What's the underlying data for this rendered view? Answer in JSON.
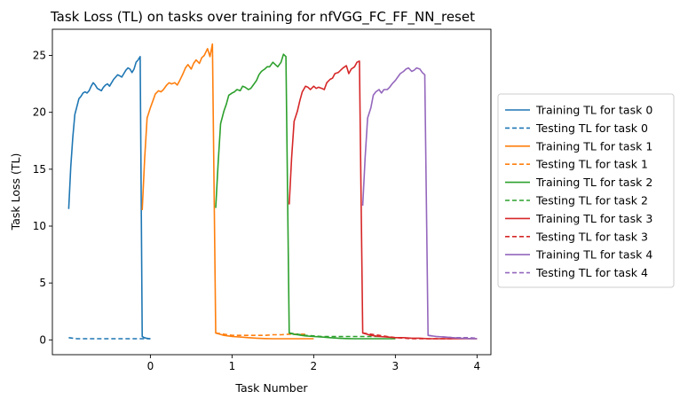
{
  "chart_data": {
    "type": "line",
    "title": "Task Loss (TL) on tasks over training for nfVGG_FC_FF_NN_reset",
    "xlabel": "Task Number",
    "ylabel": "Task Loss (TL)",
    "xlim": [
      -1.2,
      4.17
    ],
    "ylim": [
      -1.3,
      27.3
    ],
    "xticks": [
      0,
      1,
      2,
      3,
      4
    ],
    "yticks": [
      0,
      5,
      10,
      15,
      20,
      25
    ],
    "grid": false,
    "legend_position": "right-outside",
    "colors": {
      "task0": "#1f77b4",
      "task1": "#ff7f0e",
      "task2": "#2ca02c",
      "task3": "#d62728",
      "task4": "#9467bd"
    },
    "x": [
      -1.0,
      -0.9,
      -0.8,
      -0.7,
      -0.6,
      -0.5,
      -0.4,
      -0.3,
      -0.2,
      -0.1,
      0.0,
      0.1,
      0.2,
      0.3,
      0.4,
      0.5,
      0.6,
      0.7,
      0.8,
      0.9,
      1.0,
      1.1,
      1.2,
      1.3,
      1.4,
      1.5,
      1.6,
      1.7,
      1.8,
      1.9,
      2.0,
      2.1,
      2.2,
      2.3,
      2.4,
      2.5,
      2.6,
      2.7,
      2.8,
      2.9,
      3.0,
      3.1,
      3.2,
      3.3,
      3.4,
      3.5,
      3.6,
      3.7,
      3.8,
      3.9
    ],
    "series": [
      {
        "name": "Training TL for task 0",
        "task": "task0",
        "dash": false,
        "points": [
          [
            -1.0,
            11.5
          ],
          [
            -0.975,
            15.2
          ],
          [
            -0.95,
            17.8
          ],
          [
            -0.925,
            19.8
          ],
          [
            -0.9,
            20.5
          ],
          [
            -0.875,
            21.2
          ],
          [
            -0.85,
            21.4
          ],
          [
            -0.825,
            21.7
          ],
          [
            -0.8,
            21.8
          ],
          [
            -0.775,
            21.7
          ],
          [
            -0.75,
            21.9
          ],
          [
            -0.725,
            22.3
          ],
          [
            -0.7,
            22.6
          ],
          [
            -0.675,
            22.4
          ],
          [
            -0.65,
            22.1
          ],
          [
            -0.625,
            22.0
          ],
          [
            -0.6,
            21.9
          ],
          [
            -0.575,
            22.2
          ],
          [
            -0.55,
            22.4
          ],
          [
            -0.525,
            22.5
          ],
          [
            -0.5,
            22.3
          ],
          [
            -0.475,
            22.6
          ],
          [
            -0.45,
            22.9
          ],
          [
            -0.425,
            23.1
          ],
          [
            -0.4,
            23.3
          ],
          [
            -0.375,
            23.2
          ],
          [
            -0.35,
            23.1
          ],
          [
            -0.325,
            23.4
          ],
          [
            -0.3,
            23.7
          ],
          [
            -0.275,
            23.9
          ],
          [
            -0.25,
            23.8
          ],
          [
            -0.225,
            23.5
          ],
          [
            -0.2,
            23.8
          ],
          [
            -0.175,
            24.4
          ],
          [
            -0.15,
            24.6
          ],
          [
            -0.125,
            24.9
          ],
          [
            -0.1,
            0.3
          ],
          [
            -0.075,
            0.2
          ],
          [
            -0.05,
            0.15
          ],
          [
            -0.025,
            0.12
          ],
          [
            0.0,
            0.1
          ]
        ]
      },
      {
        "name": "Testing TL for task 0",
        "task": "task0",
        "dash": true,
        "points": [
          [
            -1.0,
            0.2
          ],
          [
            -0.95,
            0.15
          ],
          [
            -0.9,
            0.1
          ],
          [
            -0.8,
            0.1
          ],
          [
            -0.7,
            0.1
          ],
          [
            -0.6,
            0.1
          ],
          [
            -0.5,
            0.1
          ],
          [
            -0.4,
            0.1
          ],
          [
            -0.3,
            0.1
          ],
          [
            -0.2,
            0.1
          ],
          [
            -0.1,
            0.1
          ],
          [
            0.0,
            0.1
          ]
        ]
      },
      {
        "name": "Training TL for task 1",
        "task": "task1",
        "dash": false,
        "points": [
          [
            -0.1,
            11.4
          ],
          [
            -0.07,
            16.0
          ],
          [
            -0.04,
            19.5
          ],
          [
            0.0,
            20.4
          ],
          [
            0.03,
            21.0
          ],
          [
            0.06,
            21.6
          ],
          [
            0.1,
            21.9
          ],
          [
            0.13,
            21.8
          ],
          [
            0.16,
            22.0
          ],
          [
            0.2,
            22.4
          ],
          [
            0.23,
            22.6
          ],
          [
            0.26,
            22.5
          ],
          [
            0.3,
            22.6
          ],
          [
            0.33,
            22.4
          ],
          [
            0.36,
            22.8
          ],
          [
            0.4,
            23.4
          ],
          [
            0.43,
            23.9
          ],
          [
            0.46,
            24.2
          ],
          [
            0.5,
            23.8
          ],
          [
            0.53,
            24.3
          ],
          [
            0.56,
            24.6
          ],
          [
            0.6,
            24.3
          ],
          [
            0.63,
            24.8
          ],
          [
            0.66,
            25.0
          ],
          [
            0.7,
            25.6
          ],
          [
            0.73,
            24.9
          ],
          [
            0.76,
            26.0
          ],
          [
            0.8,
            0.6
          ],
          [
            0.85,
            0.5
          ],
          [
            0.9,
            0.4
          ],
          [
            0.95,
            0.35
          ],
          [
            1.0,
            0.3
          ],
          [
            1.1,
            0.25
          ],
          [
            1.2,
            0.2
          ],
          [
            1.3,
            0.15
          ],
          [
            1.4,
            0.12
          ],
          [
            1.5,
            0.1
          ],
          [
            1.6,
            0.1
          ],
          [
            1.7,
            0.1
          ],
          [
            1.8,
            0.1
          ],
          [
            1.9,
            0.1
          ],
          [
            2.0,
            0.1
          ]
        ]
      },
      {
        "name": "Testing TL for task 1",
        "task": "task1",
        "dash": true,
        "points": [
          [
            0.8,
            0.6
          ],
          [
            0.9,
            0.5
          ],
          [
            1.0,
            0.4
          ],
          [
            1.1,
            0.4
          ],
          [
            1.2,
            0.4
          ],
          [
            1.3,
            0.4
          ],
          [
            1.4,
            0.4
          ],
          [
            1.5,
            0.45
          ],
          [
            1.6,
            0.45
          ],
          [
            1.7,
            0.5
          ],
          [
            1.8,
            0.5
          ],
          [
            1.9,
            0.5
          ]
        ]
      },
      {
        "name": "Training TL for task 2",
        "task": "task2",
        "dash": false,
        "points": [
          [
            0.8,
            11.6
          ],
          [
            0.83,
            15.5
          ],
          [
            0.86,
            19.0
          ],
          [
            0.9,
            20.1
          ],
          [
            0.93,
            20.7
          ],
          [
            0.96,
            21.5
          ],
          [
            1.0,
            21.7
          ],
          [
            1.03,
            21.8
          ],
          [
            1.06,
            22.0
          ],
          [
            1.1,
            21.9
          ],
          [
            1.13,
            22.3
          ],
          [
            1.16,
            22.2
          ],
          [
            1.2,
            22.0
          ],
          [
            1.23,
            22.1
          ],
          [
            1.26,
            22.4
          ],
          [
            1.3,
            22.8
          ],
          [
            1.33,
            23.3
          ],
          [
            1.36,
            23.6
          ],
          [
            1.4,
            23.8
          ],
          [
            1.43,
            24.0
          ],
          [
            1.46,
            24.0
          ],
          [
            1.5,
            24.4
          ],
          [
            1.53,
            24.2
          ],
          [
            1.56,
            24.0
          ],
          [
            1.6,
            24.4
          ],
          [
            1.63,
            25.1
          ],
          [
            1.66,
            24.9
          ],
          [
            1.7,
            0.6
          ],
          [
            1.75,
            0.5
          ],
          [
            1.8,
            0.45
          ],
          [
            1.85,
            0.4
          ],
          [
            1.9,
            0.35
          ],
          [
            2.0,
            0.3
          ],
          [
            2.1,
            0.25
          ],
          [
            2.2,
            0.2
          ],
          [
            2.3,
            0.15
          ],
          [
            2.4,
            0.12
          ],
          [
            2.5,
            0.1
          ],
          [
            2.6,
            0.1
          ],
          [
            2.7,
            0.1
          ],
          [
            2.8,
            0.1
          ],
          [
            2.9,
            0.1
          ],
          [
            3.0,
            0.1
          ]
        ]
      },
      {
        "name": "Testing TL for task 2",
        "task": "task2",
        "dash": true,
        "points": [
          [
            1.7,
            0.6
          ],
          [
            1.8,
            0.5
          ],
          [
            1.9,
            0.4
          ],
          [
            2.0,
            0.35
          ],
          [
            2.1,
            0.3
          ],
          [
            2.2,
            0.3
          ],
          [
            2.3,
            0.3
          ],
          [
            2.4,
            0.3
          ],
          [
            2.5,
            0.3
          ],
          [
            2.6,
            0.3
          ],
          [
            2.7,
            0.3
          ],
          [
            2.8,
            0.3
          ]
        ]
      },
      {
        "name": "Training TL for task 3",
        "task": "task3",
        "dash": false,
        "points": [
          [
            1.7,
            11.9
          ],
          [
            1.73,
            16.0
          ],
          [
            1.76,
            19.2
          ],
          [
            1.8,
            20.1
          ],
          [
            1.83,
            21.0
          ],
          [
            1.86,
            21.8
          ],
          [
            1.9,
            22.3
          ],
          [
            1.93,
            22.2
          ],
          [
            1.96,
            22.0
          ],
          [
            2.0,
            22.3
          ],
          [
            2.03,
            22.1
          ],
          [
            2.06,
            22.2
          ],
          [
            2.1,
            22.1
          ],
          [
            2.13,
            22.0
          ],
          [
            2.16,
            22.6
          ],
          [
            2.2,
            22.9
          ],
          [
            2.23,
            23.0
          ],
          [
            2.26,
            23.4
          ],
          [
            2.3,
            23.5
          ],
          [
            2.33,
            23.7
          ],
          [
            2.36,
            23.9
          ],
          [
            2.4,
            24.1
          ],
          [
            2.43,
            23.4
          ],
          [
            2.46,
            23.8
          ],
          [
            2.5,
            24.0
          ],
          [
            2.53,
            24.4
          ],
          [
            2.56,
            24.5
          ],
          [
            2.6,
            0.6
          ],
          [
            2.65,
            0.5
          ],
          [
            2.7,
            0.4
          ],
          [
            2.75,
            0.35
          ],
          [
            2.8,
            0.3
          ],
          [
            2.9,
            0.25
          ],
          [
            3.0,
            0.2
          ],
          [
            3.1,
            0.2
          ],
          [
            3.2,
            0.15
          ],
          [
            3.3,
            0.15
          ],
          [
            3.4,
            0.1
          ],
          [
            3.5,
            0.1
          ],
          [
            3.6,
            0.1
          ],
          [
            3.7,
            0.1
          ],
          [
            3.8,
            0.1
          ],
          [
            3.9,
            0.1
          ],
          [
            4.0,
            0.1
          ]
        ]
      },
      {
        "name": "Testing TL for task 3",
        "task": "task3",
        "dash": true,
        "points": [
          [
            2.6,
            0.6
          ],
          [
            2.7,
            0.5
          ],
          [
            2.8,
            0.4
          ],
          [
            2.9,
            0.3
          ],
          [
            3.0,
            0.2
          ],
          [
            3.1,
            0.15
          ],
          [
            3.2,
            0.1
          ],
          [
            3.3,
            0.1
          ],
          [
            3.4,
            0.1
          ],
          [
            3.5,
            0.1
          ],
          [
            3.6,
            0.1
          ],
          [
            3.7,
            0.1
          ]
        ]
      },
      {
        "name": "Training TL for task 4",
        "task": "task4",
        "dash": false,
        "points": [
          [
            2.6,
            11.8
          ],
          [
            2.63,
            16.0
          ],
          [
            2.66,
            19.5
          ],
          [
            2.7,
            20.4
          ],
          [
            2.73,
            21.5
          ],
          [
            2.76,
            21.8
          ],
          [
            2.8,
            22.0
          ],
          [
            2.83,
            21.7
          ],
          [
            2.86,
            22.0
          ],
          [
            2.9,
            22.0
          ],
          [
            2.93,
            22.2
          ],
          [
            2.96,
            22.5
          ],
          [
            3.0,
            22.8
          ],
          [
            3.03,
            23.1
          ],
          [
            3.06,
            23.4
          ],
          [
            3.1,
            23.6
          ],
          [
            3.13,
            23.8
          ],
          [
            3.16,
            23.9
          ],
          [
            3.2,
            23.6
          ],
          [
            3.23,
            23.7
          ],
          [
            3.26,
            23.9
          ],
          [
            3.3,
            23.8
          ],
          [
            3.33,
            23.5
          ],
          [
            3.36,
            23.3
          ],
          [
            3.4,
            0.4
          ],
          [
            3.5,
            0.3
          ],
          [
            3.6,
            0.25
          ],
          [
            3.7,
            0.2
          ],
          [
            3.8,
            0.15
          ],
          [
            3.9,
            0.12
          ],
          [
            4.0,
            0.1
          ]
        ]
      },
      {
        "name": "Testing TL for task 4",
        "task": "task4",
        "dash": true,
        "points": [
          [
            3.4,
            0.4
          ],
          [
            3.5,
            0.3
          ],
          [
            3.6,
            0.25
          ],
          [
            3.7,
            0.2
          ],
          [
            3.8,
            0.2
          ],
          [
            3.9,
            0.2
          ],
          [
            4.0,
            0.15
          ]
        ]
      }
    ]
  }
}
